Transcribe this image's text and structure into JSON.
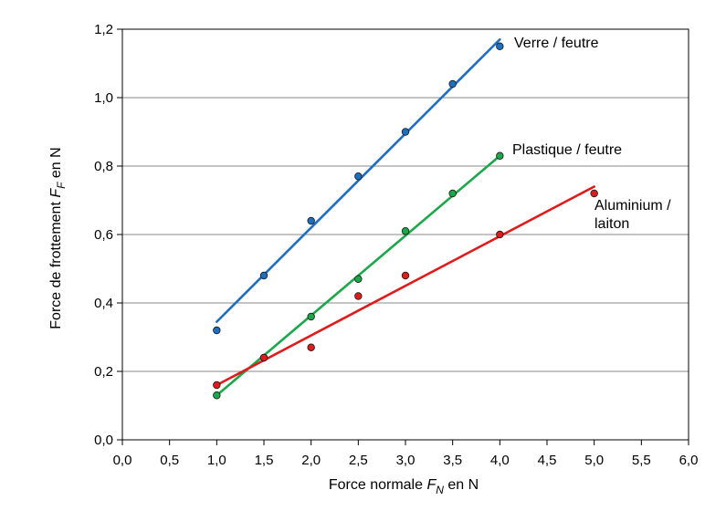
{
  "chart_data": {
    "type": "scatter",
    "xlabel": {
      "prefix": "Force normale ",
      "symbol": "F",
      "subscript": "N",
      "suffix": " en N"
    },
    "ylabel": {
      "prefix": "Force de frottement ",
      "symbol": "F",
      "subscript": "F",
      "suffix": " en N"
    },
    "xlim": [
      0,
      6
    ],
    "ylim": [
      0,
      1.2
    ],
    "x_ticks": [
      "0,0",
      "0,5",
      "1,0",
      "1,5",
      "2,0",
      "2,5",
      "3,0",
      "3,5",
      "4,0",
      "4,5",
      "5,0",
      "5,5",
      "6,0"
    ],
    "y_ticks": [
      "0,0",
      "0,2",
      "0,4",
      "0,6",
      "0,8",
      "1,0",
      "1,2"
    ],
    "grid": "horizontal",
    "series": [
      {
        "name": "Verre / feutre",
        "color": "#1f6fc0",
        "points": [
          [
            1.0,
            0.32
          ],
          [
            1.5,
            0.48
          ],
          [
            2.0,
            0.64
          ],
          [
            2.5,
            0.77
          ],
          [
            3.0,
            0.9
          ],
          [
            3.5,
            1.04
          ],
          [
            4.0,
            1.15
          ]
        ],
        "fit": [
          [
            1.0,
            0.345
          ],
          [
            4.0,
            1.17
          ]
        ]
      },
      {
        "name": "Plastique / feutre",
        "color": "#1ba84a",
        "points": [
          [
            1.0,
            0.13
          ],
          [
            1.5,
            0.24
          ],
          [
            2.0,
            0.36
          ],
          [
            2.5,
            0.47
          ],
          [
            3.0,
            0.61
          ],
          [
            3.5,
            0.72
          ],
          [
            4.0,
            0.83
          ]
        ],
        "fit": [
          [
            1.0,
            0.13
          ],
          [
            4.0,
            0.83
          ]
        ]
      },
      {
        "name": "Aluminium / laiton",
        "label_lines": [
          "Aluminium /",
          "laiton"
        ],
        "color": "#e01b1b",
        "points": [
          [
            1.0,
            0.16
          ],
          [
            1.5,
            0.24
          ],
          [
            2.0,
            0.27
          ],
          [
            2.5,
            0.42
          ],
          [
            3.0,
            0.48
          ],
          [
            4.0,
            0.6
          ],
          [
            5.0,
            0.72
          ]
        ],
        "fit": [
          [
            1.0,
            0.16
          ],
          [
            5.0,
            0.74
          ]
        ]
      }
    ]
  }
}
